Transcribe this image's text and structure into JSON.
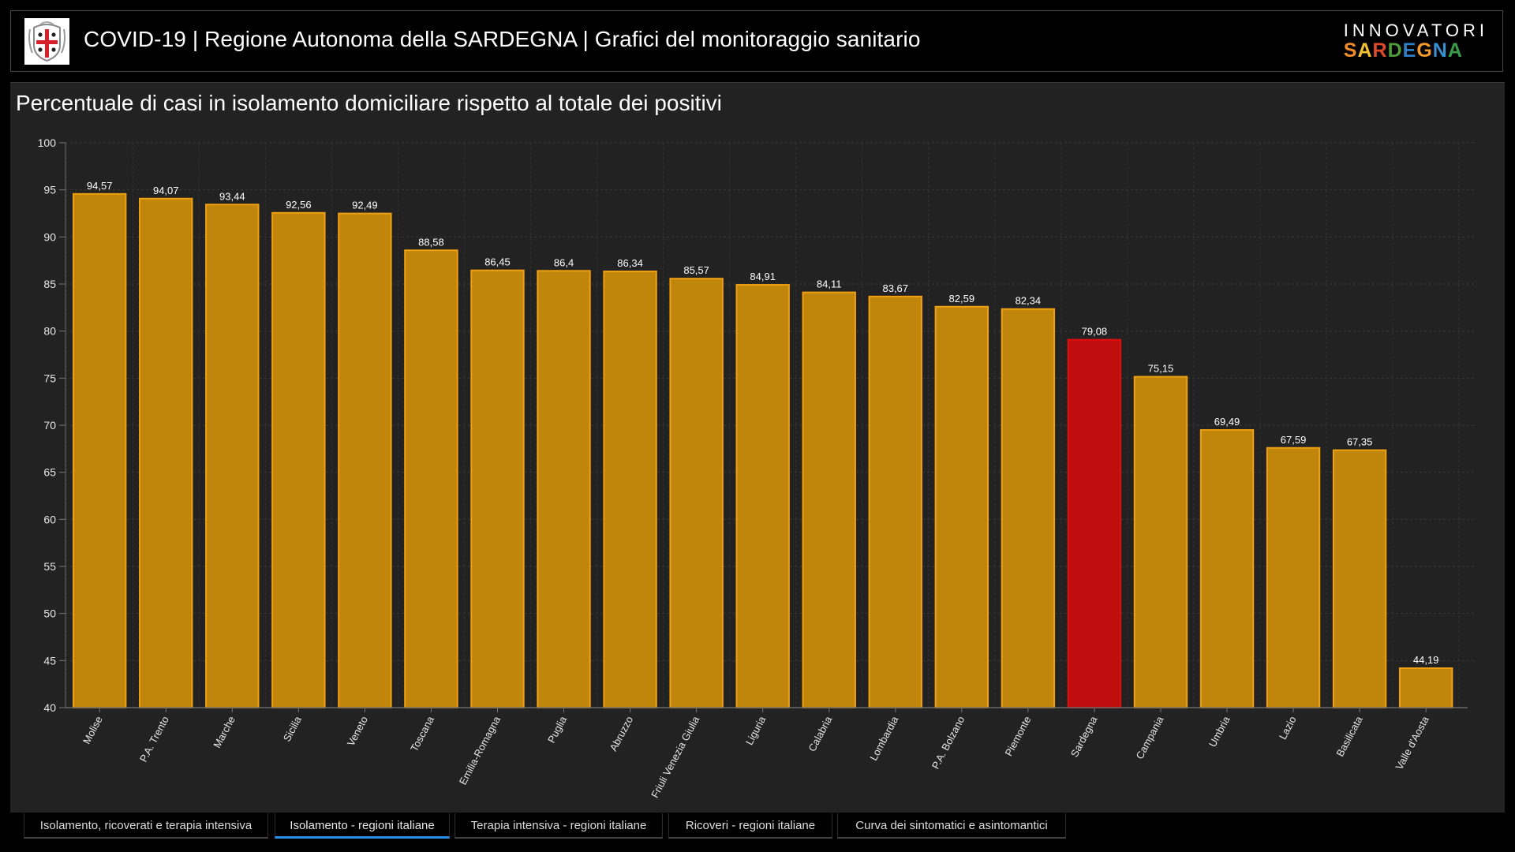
{
  "header": {
    "title": "COVID-19 | Regione Autonoma della SARDEGNA | Grafici del monitoraggio sanitario",
    "crest_icon": "sardinia-coat-of-arms",
    "brand_top": "INNOVATORI",
    "brand_bottom": "SARDEGNA",
    "brand_letter_colors": [
      "#f28c28",
      "#f2c230",
      "#e04a2a",
      "#4f9a3a",
      "#2f7fc4",
      "#f29a2a",
      "#3a8fd0",
      "#3a9a4a",
      "#e8a83a"
    ]
  },
  "panel": {
    "title": "Percentuale di casi in isolamento domiciliare rispetto al totale dei positivi"
  },
  "colors": {
    "bar_fill": "#c0850b",
    "bar_stroke": "#f0a010",
    "highlight_fill": "#c00d0d",
    "highlight_stroke": "#e01010",
    "active_tab": "#2d8ee6"
  },
  "chart_data": {
    "type": "bar",
    "title": "Percentuale di casi in isolamento domiciliare rispetto al totale dei positivi",
    "xlabel": "",
    "ylabel": "",
    "ylim": [
      40,
      100
    ],
    "yticks": [
      40,
      45,
      50,
      55,
      60,
      65,
      70,
      75,
      80,
      85,
      90,
      95,
      100
    ],
    "grid": true,
    "decimal_separator": ",",
    "highlight_category": "Sardegna",
    "categories": [
      "Molise",
      "P.A. Trento",
      "Marche",
      "Sicilia",
      "Veneto",
      "Toscana",
      "Emilia-Romagna",
      "Puglia",
      "Abruzzo",
      "Friuli Venezia Giulia",
      "Liguria",
      "Calabria",
      "Lombardia",
      "P.A. Bolzano",
      "Piemonte",
      "Sardegna",
      "Campania",
      "Umbria",
      "Lazio",
      "Basilicata",
      "Valle d'Aosta"
    ],
    "values": [
      94.57,
      94.07,
      93.44,
      92.56,
      92.49,
      88.58,
      86.45,
      86.4,
      86.34,
      85.57,
      84.91,
      84.11,
      83.67,
      82.59,
      82.34,
      79.08,
      75.15,
      69.49,
      67.59,
      67.35,
      44.19
    ],
    "value_labels": [
      "94,57",
      "94,07",
      "93,44",
      "92,56",
      "92,49",
      "88,58",
      "86,45",
      "86,4",
      "86,34",
      "85,57",
      "84,91",
      "84,11",
      "83,67",
      "82,59",
      "82,34",
      "79,08",
      "75,15",
      "69,49",
      "67,59",
      "67,35",
      "44,19"
    ]
  },
  "tabs": [
    {
      "label": "Isolamento, ricoverati e terapia intensiva",
      "active": false
    },
    {
      "label": "Isolamento - regioni italiane",
      "active": true
    },
    {
      "label": "Terapia intensiva - regioni italiane",
      "active": false
    },
    {
      "label": "Ricoveri - regioni italiane",
      "active": false
    },
    {
      "label": "Curva dei sintomatici e asintomantici",
      "active": false
    }
  ]
}
